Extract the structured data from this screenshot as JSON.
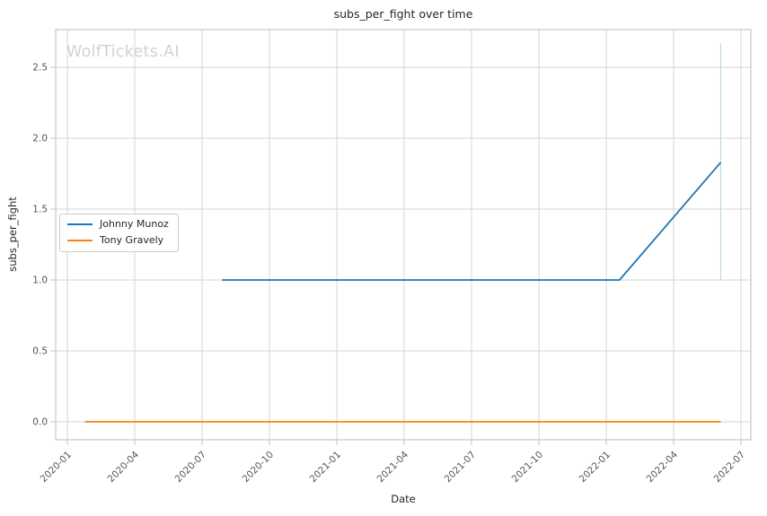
{
  "figure": {
    "title": "subs_per_fight over time",
    "xlabel": "Date",
    "ylabel": "subs_per_fight",
    "watermark": "WolfTickets.AI",
    "background": "#ffffff"
  },
  "chart_data": {
    "type": "line",
    "title": "subs_per_fight over time",
    "xlabel": "Date",
    "ylabel": "subs_per_fight",
    "grid": true,
    "legend_position": "center-left",
    "x_ticks": [
      "2020-01",
      "2020-04",
      "2020-07",
      "2020-10",
      "2021-01",
      "2021-04",
      "2021-07",
      "2021-10",
      "2022-01",
      "2022-04",
      "2022-07"
    ],
    "y_ticks": [
      "0.0",
      "0.5",
      "1.0",
      "1.5",
      "2.0",
      "2.5"
    ],
    "ylim": [
      -0.13,
      2.77
    ],
    "xlim": [
      "2019-12-16",
      "2022-07-14"
    ],
    "series": [
      {
        "name": "Johnny Munoz",
        "color": "#1f77b4",
        "points": [
          {
            "x": "2020-07-28",
            "y": 1.0
          },
          {
            "x": "2022-01-19",
            "y": 1.0
          },
          {
            "x": "2022-06-04",
            "y": 1.83
          }
        ]
      },
      {
        "name": "Tony Gravely",
        "color": "#ff7f0e",
        "points": [
          {
            "x": "2020-01-25",
            "y": 0.0
          },
          {
            "x": "2022-06-04",
            "y": 0.0
          }
        ]
      }
    ],
    "annotations": [
      {
        "type": "vline_segment",
        "name": "faint-marker-line",
        "x": "2022-06-04",
        "y_from": 1.0,
        "y_to": 2.67,
        "color": "#bcd7e8"
      }
    ],
    "style": {
      "grid_color": "#d6d6d6",
      "spine_color": "#c4c4c4",
      "tick_color": "#c4c4c4",
      "tick_label_color": "#555555",
      "text_color": "#262626",
      "watermark_color": "#d2d2d2"
    }
  }
}
